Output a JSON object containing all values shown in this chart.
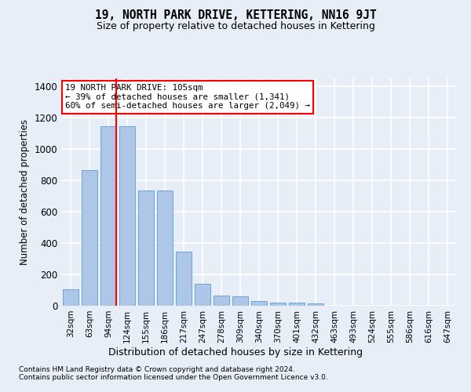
{
  "title": "19, NORTH PARK DRIVE, KETTERING, NN16 9JT",
  "subtitle": "Size of property relative to detached houses in Kettering",
  "xlabel": "Distribution of detached houses by size in Kettering",
  "ylabel": "Number of detached properties",
  "bar_labels": [
    "32sqm",
    "63sqm",
    "94sqm",
    "124sqm",
    "155sqm",
    "186sqm",
    "217sqm",
    "247sqm",
    "278sqm",
    "309sqm",
    "340sqm",
    "370sqm",
    "401sqm",
    "432sqm",
    "463sqm",
    "493sqm",
    "524sqm",
    "555sqm",
    "586sqm",
    "616sqm",
    "647sqm"
  ],
  "bar_values": [
    105,
    865,
    1145,
    1145,
    735,
    735,
    345,
    140,
    65,
    60,
    30,
    20,
    20,
    13,
    0,
    0,
    0,
    0,
    0,
    0,
    0
  ],
  "bar_color": "#aec6e8",
  "bar_edge_color": "#5b9bd5",
  "red_line_index": 2,
  "ylim": [
    0,
    1450
  ],
  "yticks": [
    0,
    200,
    400,
    600,
    800,
    1000,
    1200,
    1400
  ],
  "annotation_text": "19 NORTH PARK DRIVE: 105sqm\n← 39% of detached houses are smaller (1,341)\n60% of semi-detached houses are larger (2,049) →",
  "footnote1": "Contains HM Land Registry data © Crown copyright and database right 2024.",
  "footnote2": "Contains public sector information licensed under the Open Government Licence v3.0.",
  "bg_color": "#e8eef8",
  "plot_bg_color": "#e8eef8",
  "grid_color": "#ffffff"
}
